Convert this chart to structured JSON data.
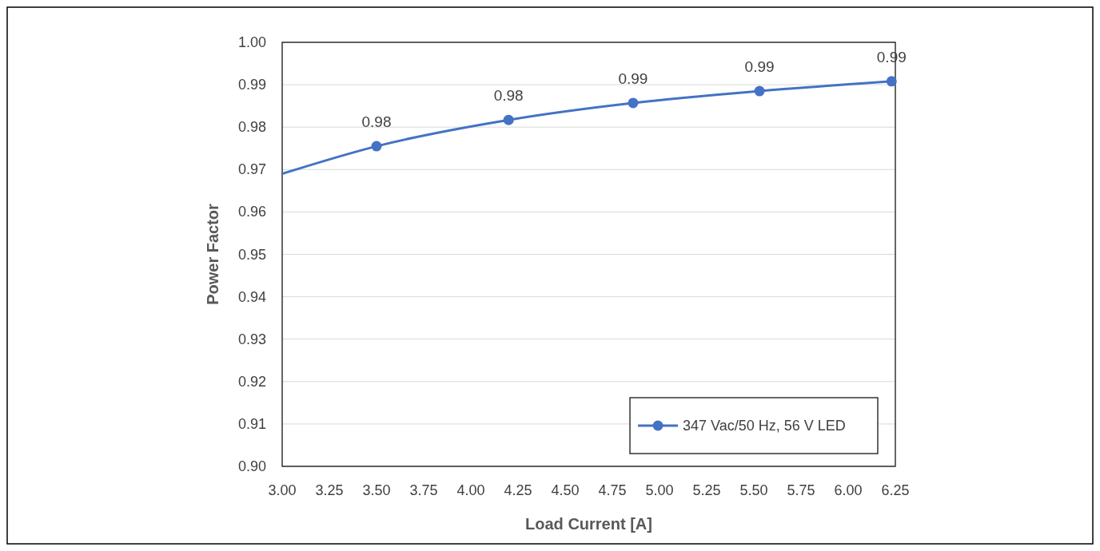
{
  "chart_data": {
    "type": "line",
    "xlabel": "Load Current [A]",
    "ylabel": "Power Factor",
    "xlim": [
      3.0,
      6.25
    ],
    "xticks": [
      {
        "value": 3,
        "label": "3.00"
      },
      {
        "value": 3.25,
        "label": "3.25"
      },
      {
        "value": 3.5,
        "label": "3.50"
      },
      {
        "value": 3.75,
        "label": "3.75"
      },
      {
        "value": 4,
        "label": "4.00"
      },
      {
        "value": 4.25,
        "label": "4.25"
      },
      {
        "value": 4.5,
        "label": "4.50"
      },
      {
        "value": 4.75,
        "label": "4.75"
      },
      {
        "value": 5,
        "label": "5.00"
      },
      {
        "value": 5.25,
        "label": "5.25"
      },
      {
        "value": 5.5,
        "label": "5.50"
      },
      {
        "value": 5.75,
        "label": "5.75"
      },
      {
        "value": 6,
        "label": "6.00"
      },
      {
        "value": 6.25,
        "label": "6.25"
      }
    ],
    "ylim": [
      0.9,
      1.0
    ],
    "yticks": [
      {
        "value": 0.9,
        "label": "0.90"
      },
      {
        "value": 0.91,
        "label": "0.91"
      },
      {
        "value": 0.92,
        "label": "0.92"
      },
      {
        "value": 0.93,
        "label": "0.93"
      },
      {
        "value": 0.94,
        "label": "0.94"
      },
      {
        "value": 0.95,
        "label": "0.95"
      },
      {
        "value": 0.96,
        "label": "0.96"
      },
      {
        "value": 0.97,
        "label": "0.97"
      },
      {
        "value": 0.98,
        "label": "0.98"
      },
      {
        "value": 0.99,
        "label": "0.99"
      },
      {
        "value": 1.0,
        "label": "1.00"
      }
    ],
    "grid": "y",
    "legend": "bottom right",
    "marker": "circle",
    "line_style": "solid",
    "series": [
      {
        "name": "347 Vac/50 Hz, 56 V LED",
        "color": "#4472c4",
        "x": [
          3.0,
          3.5,
          4.2,
          4.86,
          5.53,
          6.23
        ],
        "values": [
          0.969,
          0.9755,
          0.9817,
          0.9857,
          0.9885,
          0.9908
        ],
        "value_labels": [
          null,
          "0.98",
          "0.98",
          "0.99",
          "0.99",
          "0.99"
        ]
      }
    ]
  }
}
